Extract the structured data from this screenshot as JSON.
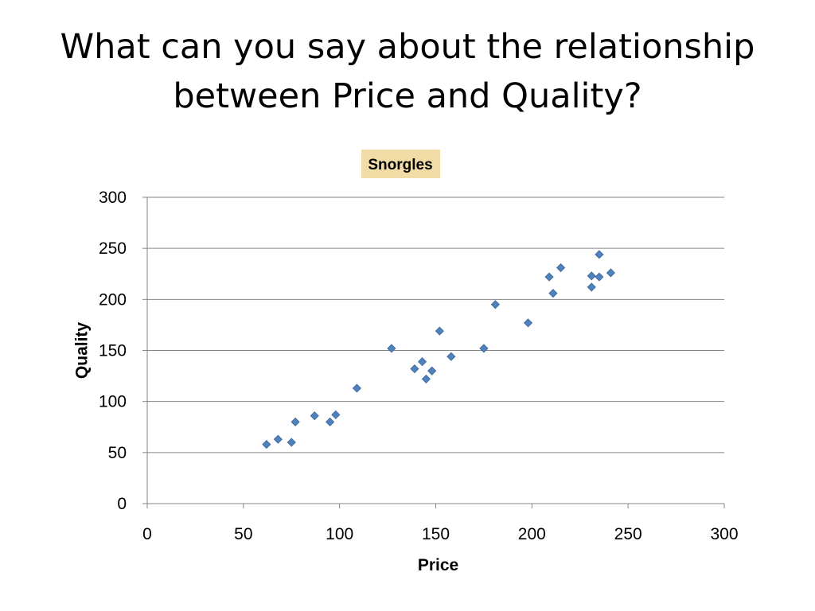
{
  "slide": {
    "title_line1": "What can you say about the relationship",
    "title_line2": "between Price and Quality?"
  },
  "chart_data": {
    "type": "scatter",
    "title": "Snorgles",
    "xlabel": "Price",
    "ylabel": "Quality",
    "xlim": [
      0,
      300
    ],
    "ylim": [
      0,
      300
    ],
    "xticks": [
      0,
      50,
      100,
      150,
      200,
      250,
      300
    ],
    "yticks": [
      0,
      50,
      100,
      150,
      200,
      250,
      300
    ],
    "grid": "horizontal",
    "legend": "none",
    "marker": "diamond",
    "colors": {
      "marker": "#4F81BD",
      "marker_stroke": "#3A6595",
      "gridline": "#868686",
      "title_background": "#F2DCA6"
    },
    "series": [
      {
        "x": [
          62,
          68,
          75,
          77,
          87,
          95,
          98,
          109,
          127,
          139,
          143,
          145,
          148,
          152,
          158,
          175,
          181,
          198,
          209,
          211,
          215,
          231,
          231,
          235,
          235,
          241
        ],
        "y": [
          58,
          63,
          60,
          80,
          86,
          80,
          87,
          113,
          152,
          132,
          139,
          122,
          130,
          169,
          144,
          152,
          195,
          177,
          222,
          206,
          231,
          223,
          212,
          244,
          222,
          226
        ]
      }
    ]
  }
}
